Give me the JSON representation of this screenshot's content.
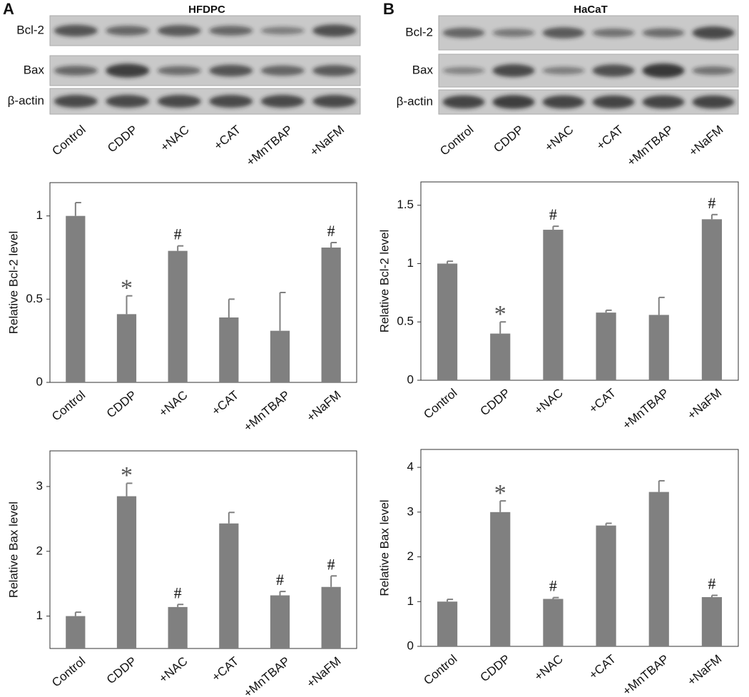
{
  "panels": [
    {
      "label": "A",
      "title": "HFDPC",
      "blot_rows": [
        "Bcl-2",
        "Bax",
        "β-actin"
      ],
      "lanes": [
        "Control",
        "CDDP",
        "+NAC",
        "+CAT",
        "+MnTBAP",
        "+NaFM"
      ]
    },
    {
      "label": "B",
      "title": "HaCaT",
      "blot_rows": [
        "Bcl-2",
        "Bax",
        "β-actin"
      ],
      "lanes": [
        "Control",
        "CDDP",
        "+NAC",
        "+CAT",
        "+MnTBAP",
        "+NaFM"
      ]
    }
  ],
  "chart_data": [
    {
      "type": "bar",
      "ylabel": "Relative Bcl-2 level",
      "color": "#808080",
      "categories": [
        "Control",
        "CDDP",
        "+NAC",
        "+CAT",
        "+MnTBAP",
        "+NaFM"
      ],
      "values": [
        1.0,
        0.41,
        0.79,
        0.39,
        0.31,
        0.81
      ],
      "errors": [
        0.08,
        0.11,
        0.03,
        0.11,
        0.23,
        0.03
      ],
      "annotations": [
        null,
        "*",
        "#",
        null,
        null,
        "#"
      ],
      "ylim": [
        0,
        1.2
      ],
      "yticks": [
        0,
        0.5,
        1
      ]
    },
    {
      "type": "bar",
      "ylabel": "Relative Bax level",
      "color": "#808080",
      "categories": [
        "Control",
        "CDDP",
        "+NAC",
        "+CAT",
        "+MnTBAP",
        "+NaFM"
      ],
      "values": [
        1.0,
        2.85,
        1.14,
        2.43,
        1.32,
        1.45
      ],
      "errors": [
        0.06,
        0.2,
        0.04,
        0.17,
        0.06,
        0.17
      ],
      "annotations": [
        null,
        "*",
        "#",
        null,
        "#",
        "#"
      ],
      "ylim": [
        0.5,
        3.55
      ],
      "yticks": [
        1,
        2,
        3
      ]
    },
    {
      "type": "bar",
      "ylabel": "Relative Bcl-2 level",
      "color": "#808080",
      "categories": [
        "Control",
        "CDDP",
        "+NAC",
        "+CAT",
        "+MnTBAP",
        "+NaFM"
      ],
      "values": [
        1.0,
        0.4,
        1.29,
        0.58,
        0.56,
        1.38
      ],
      "errors": [
        0.02,
        0.1,
        0.03,
        0.02,
        0.15,
        0.04
      ],
      "annotations": [
        null,
        "*",
        "#",
        null,
        null,
        "#"
      ],
      "ylim": [
        0,
        1.7
      ],
      "yticks": [
        0,
        0.5,
        1,
        1.5
      ]
    },
    {
      "type": "bar",
      "ylabel": "Relative Bax level",
      "color": "#808080",
      "categories": [
        "Control",
        "CDDP",
        "+NAC",
        "+CAT",
        "+MnTBAP",
        "+NaFM"
      ],
      "values": [
        1.0,
        3.0,
        1.06,
        2.7,
        3.45,
        1.1
      ],
      "errors": [
        0.05,
        0.25,
        0.03,
        0.05,
        0.25,
        0.04
      ],
      "annotations": [
        null,
        "*",
        "#",
        null,
        null,
        "#"
      ],
      "ylim": [
        0,
        4.4
      ],
      "yticks": [
        0,
        1,
        2,
        3,
        4
      ]
    }
  ]
}
